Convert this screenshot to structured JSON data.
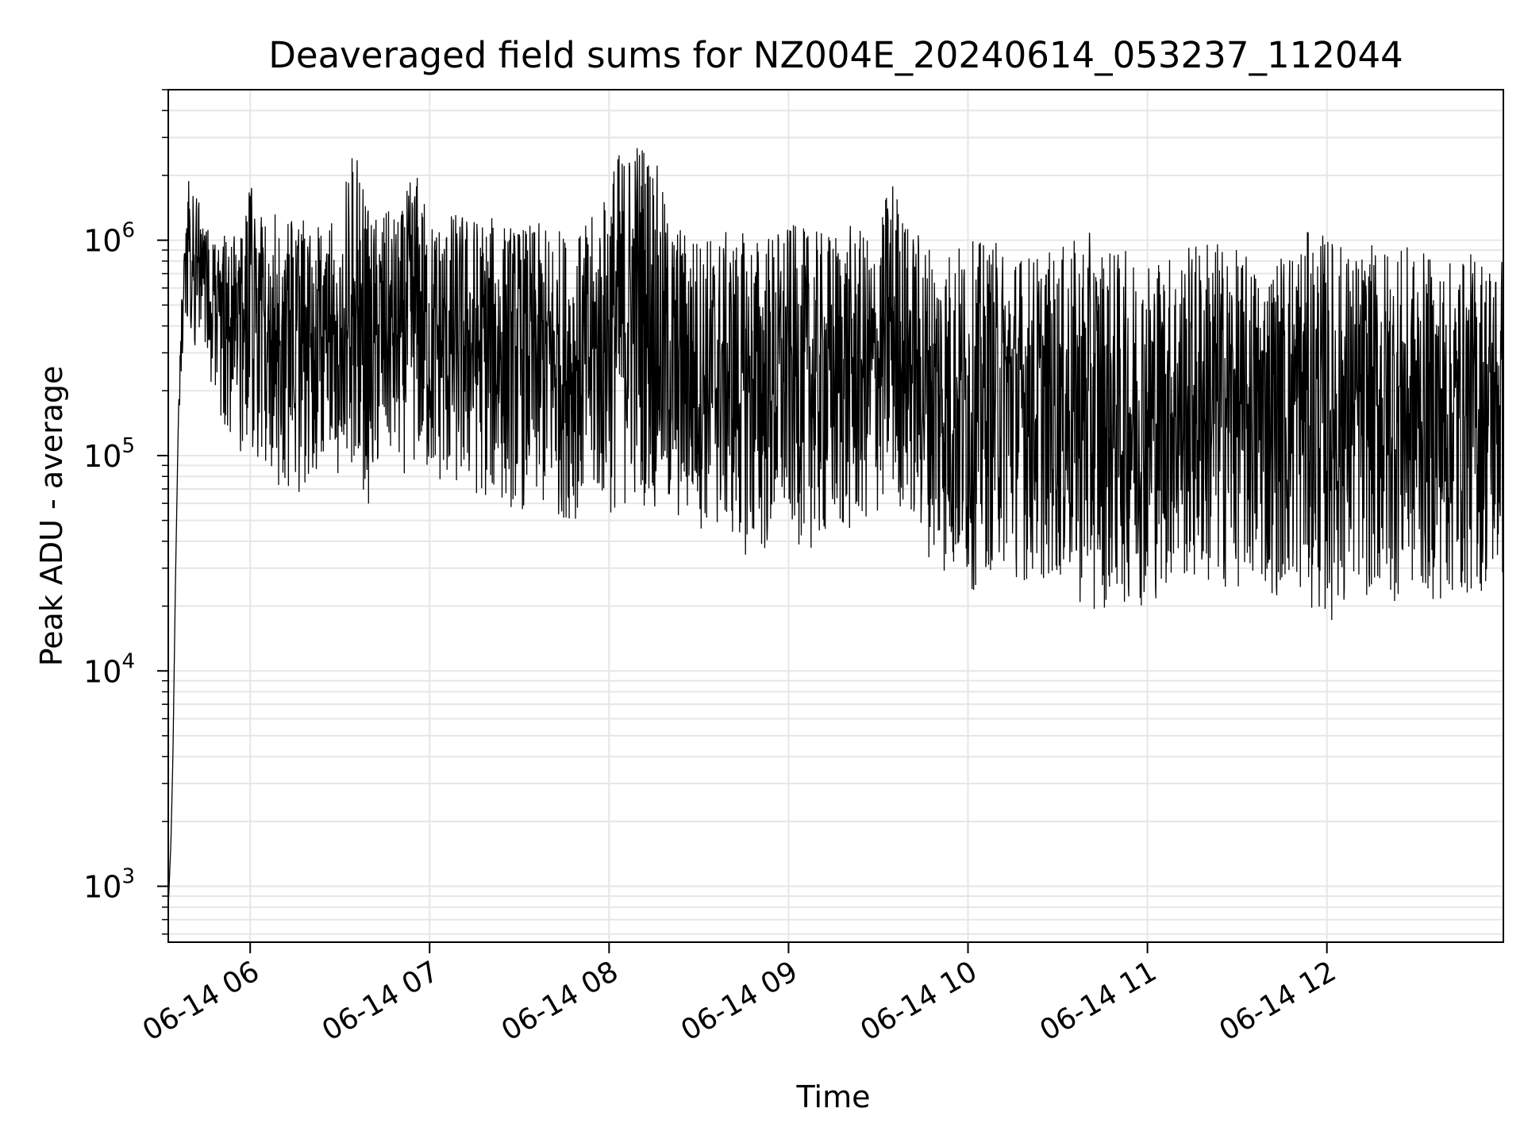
{
  "chart_data": {
    "type": "line",
    "title": "Deaveraged field sums for NZ004E_20240614_053237_112044",
    "xlabel": "Time",
    "ylabel": "Peak ADU - average",
    "x_scale": "time",
    "y_scale": "log",
    "xlim": [
      "2024-06-14 05:32:37",
      "2024-06-14 12:59:00"
    ],
    "ylim": [
      550,
      5000000
    ],
    "x_ticks": [
      "2024-06-14 06:00",
      "2024-06-14 07:00",
      "2024-06-14 08:00",
      "2024-06-14 09:00",
      "2024-06-14 10:00",
      "2024-06-14 11:00",
      "2024-06-14 12:00"
    ],
    "x_tick_labels": [
      "06-14 06",
      "06-14 07",
      "06-14 08",
      "06-14 09",
      "06-14 10",
      "06-14 11",
      "06-14 12"
    ],
    "y_ticks": [
      1000,
      10000,
      100000,
      1000000
    ],
    "y_tick_labels": [
      {
        "base": "10",
        "exp": "3"
      },
      {
        "base": "10",
        "exp": "4"
      },
      {
        "base": "10",
        "exp": "5"
      },
      {
        "base": "10",
        "exp": "6"
      }
    ],
    "grid": true,
    "line_color": "#000000",
    "grid_color": "#e6e6e6",
    "series": [
      {
        "x": [
          "2024-06-14 05:32:37",
          "2024-06-14 05:33:30",
          "2024-06-14 05:34:10",
          "2024-06-14 05:35:00",
          "2024-06-14 05:36:00",
          "2024-06-14 05:37:30",
          "2024-06-14 05:39:00",
          "2024-06-14 05:41:00",
          "2024-06-14 05:43:00",
          "2024-06-14 05:45:00",
          "2024-06-14 05:47:00",
          "2024-06-14 05:50:00",
          "2024-06-14 05:52:00",
          "2024-06-14 05:55:00",
          "2024-06-14 05:58:00",
          "2024-06-14 06:00:00",
          "2024-06-14 06:05:00",
          "2024-06-14 06:10:00",
          "2024-06-14 06:15:00",
          "2024-06-14 06:20:00",
          "2024-06-14 06:25:00",
          "2024-06-14 06:30:00",
          "2024-06-14 06:35:00",
          "2024-06-14 06:40:00",
          "2024-06-14 06:45:00",
          "2024-06-14 06:50:00",
          "2024-06-14 06:55:00",
          "2024-06-14 07:00:00",
          "2024-06-14 07:10:00",
          "2024-06-14 07:20:00",
          "2024-06-14 07:30:00",
          "2024-06-14 07:40:00",
          "2024-06-14 07:50:00",
          "2024-06-14 07:58:00",
          "2024-06-14 08:00:00",
          "2024-06-14 08:10:00",
          "2024-06-14 08:14:00",
          "2024-06-14 08:20:00",
          "2024-06-14 08:30:00",
          "2024-06-14 08:40:00",
          "2024-06-14 08:50:00",
          "2024-06-14 09:00:00",
          "2024-06-14 09:10:00",
          "2024-06-14 09:20:00",
          "2024-06-14 09:30:00",
          "2024-06-14 09:34:00",
          "2024-06-14 09:40:00",
          "2024-06-14 09:50:00",
          "2024-06-14 10:00:00",
          "2024-06-14 10:10:00",
          "2024-06-14 10:20:00",
          "2024-06-14 10:30:00",
          "2024-06-14 10:40:00",
          "2024-06-14 10:50:00",
          "2024-06-14 11:00:00",
          "2024-06-14 11:10:00",
          "2024-06-14 11:20:00",
          "2024-06-14 11:30:00",
          "2024-06-14 11:40:00",
          "2024-06-14 11:50:00",
          "2024-06-14 12:00:00",
          "2024-06-14 12:10:00",
          "2024-06-14 12:20:00",
          "2024-06-14 12:30:00",
          "2024-06-14 12:40:00",
          "2024-06-14 12:50:00",
          "2024-06-14 12:59:00"
        ],
        "y_high": [
          800,
          1600,
          4000,
          25000,
          150000,
          1000000,
          2000000,
          1700000,
          1500000,
          1200000,
          1100000,
          1200000,
          1000000,
          1100000,
          1100000,
          2000000,
          1300000,
          1400000,
          1200000,
          1300000,
          1100000,
          1400000,
          2800000,
          1300000,
          1400000,
          1300000,
          2300000,
          1300000,
          1400000,
          1300000,
          1200000,
          1200000,
          1100000,
          1500000,
          2400000,
          3300000,
          3000000,
          1300000,
          1100000,
          1100000,
          1100000,
          1200000,
          1100000,
          1200000,
          1000000,
          2300000,
          1200000,
          1000000,
          1000000,
          1000000,
          900000,
          900000,
          1100000,
          900000,
          900000,
          900000,
          1100000,
          900000,
          800000,
          1100000,
          1100000,
          900000,
          1000000,
          900000,
          800000,
          900000,
          900000
        ],
        "y_low": [
          800,
          1600,
          4000,
          25000,
          150000,
          220000,
          300000,
          330000,
          300000,
          280000,
          200000,
          150000,
          110000,
          110000,
          100000,
          100000,
          90000,
          70000,
          60000,
          80000,
          90000,
          80000,
          90000,
          55000,
          90000,
          80000,
          85000,
          70000,
          65000,
          60000,
          55000,
          50000,
          50000,
          55000,
          50000,
          60000,
          55000,
          45000,
          45000,
          40000,
          30000,
          40000,
          35000,
          40000,
          50000,
          60000,
          50000,
          28000,
          22000,
          30000,
          25000,
          25000,
          18000,
          20000,
          20000,
          25000,
          22000,
          24000,
          22000,
          22000,
          16000,
          22000,
          20000,
          22000,
          20000,
          22000,
          24000
        ]
      }
    ]
  }
}
